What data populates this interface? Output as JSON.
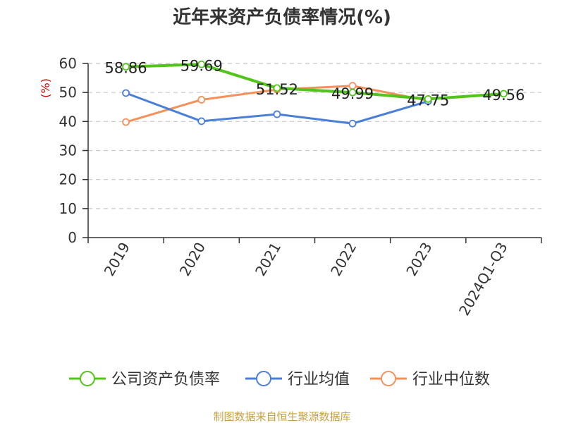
{
  "chart_data": {
    "type": "line",
    "title": "近年来资产负债率情况(%)",
    "ylabel": "(%)",
    "xlabel": "",
    "ylim": [
      0,
      60
    ],
    "yticks": [
      0,
      10,
      20,
      30,
      40,
      50,
      60
    ],
    "grid": true,
    "legend_position": "bottom",
    "categories": [
      "2019",
      "2020",
      "2021",
      "2022",
      "2023",
      "2024Q1-Q3"
    ],
    "series": [
      {
        "name": "公司资产负债率",
        "color": "#52c41a",
        "values": [
          58.86,
          59.69,
          51.52,
          49.99,
          47.75,
          49.56
        ],
        "data_labels": [
          "58.86",
          "59.69",
          "51.52",
          "49.99",
          "47.75",
          "49.56"
        ]
      },
      {
        "name": "行业均值",
        "color": "#4a7fd8",
        "values": [
          49.8,
          40.1,
          42.5,
          39.3,
          47.0,
          null
        ]
      },
      {
        "name": "行业中位数",
        "color": "#f4915a",
        "values": [
          39.8,
          47.5,
          51.0,
          52.3,
          47.2,
          null
        ]
      }
    ]
  },
  "footer": {
    "source": "制图数据来自恒生聚源数据库"
  }
}
